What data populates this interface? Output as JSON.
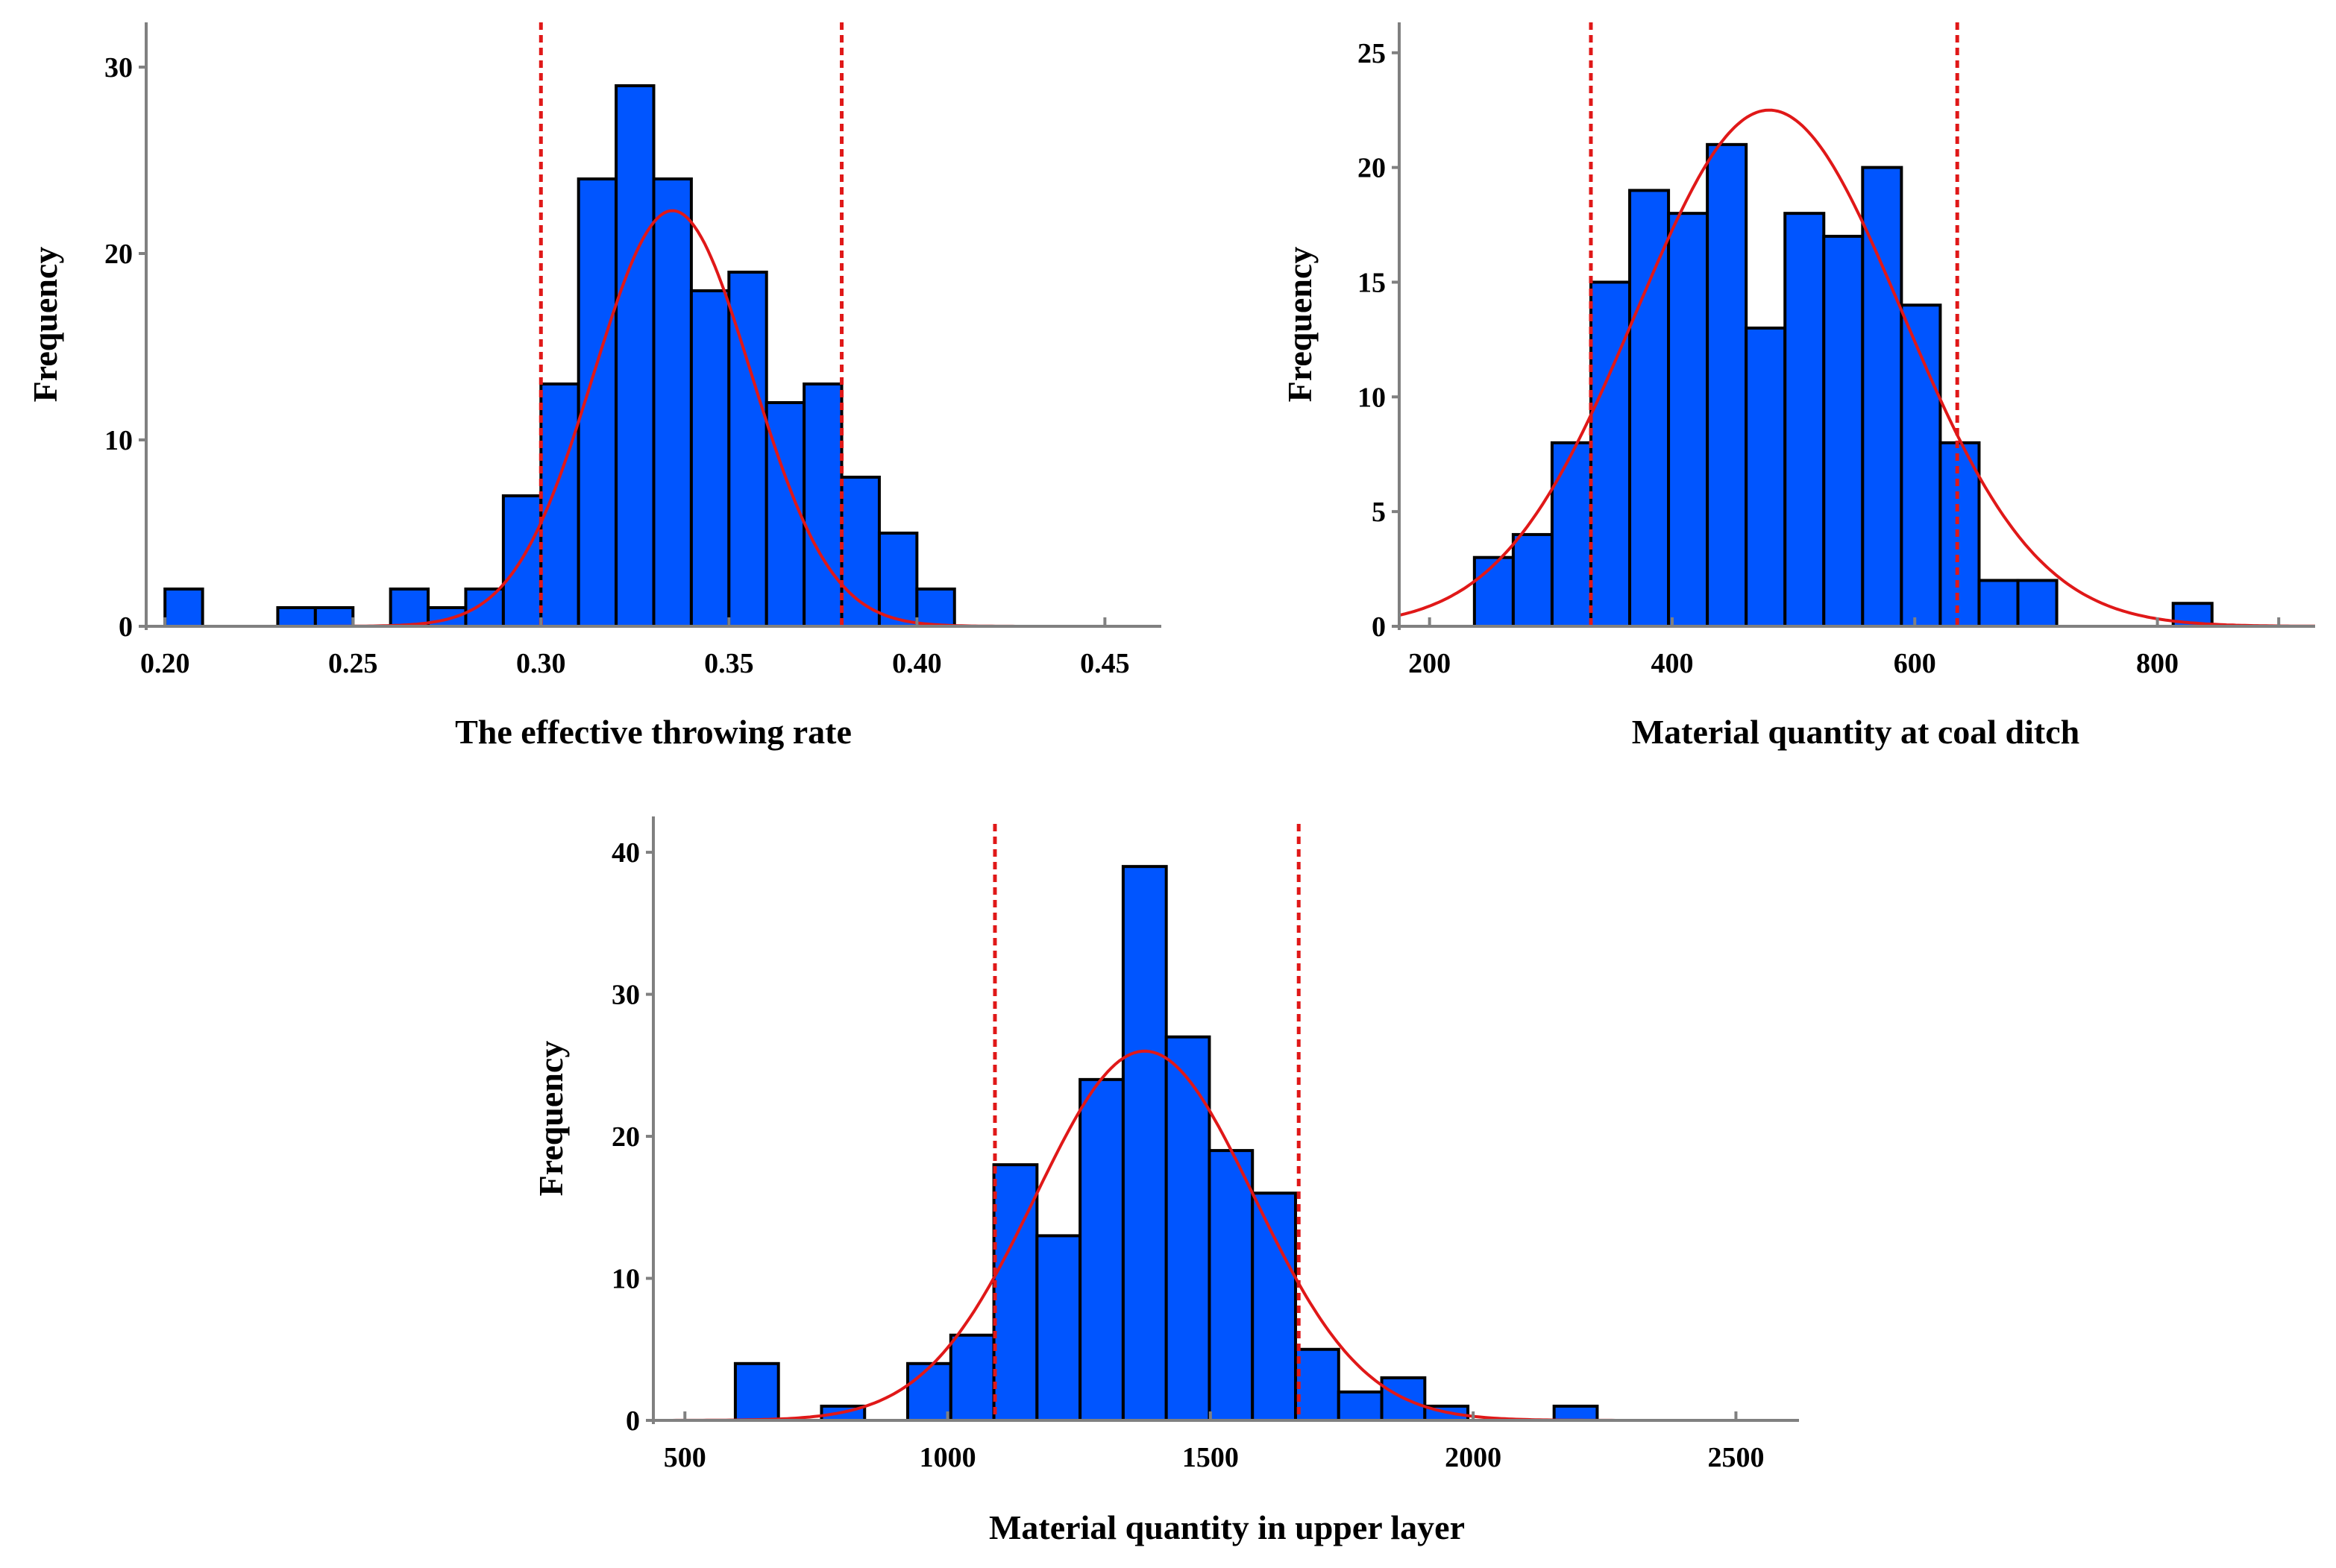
{
  "colors": {
    "bar": "#0055ff",
    "bar_edge": "#000000",
    "fit": "#e01818",
    "ref": "#e01818"
  },
  "chart_data": [
    {
      "type": "bar",
      "title": "",
      "xlabel": "The effective throwing rate",
      "ylabel": "Frequency",
      "xlim": [
        0.195,
        0.465
      ],
      "ylim": [
        0,
        32
      ],
      "xticks": [
        0.2,
        0.25,
        0.3,
        0.35,
        0.4,
        0.45
      ],
      "xtick_labels": [
        "0.20",
        "0.25",
        "0.30",
        "0.35",
        "0.40",
        "0.45"
      ],
      "yticks": [
        0,
        10,
        20,
        30
      ],
      "ytick_labels": [
        "0",
        "10",
        "20",
        "30"
      ],
      "bin_width": 0.01,
      "bin_starts": [
        0.2,
        0.23,
        0.24,
        0.26,
        0.27,
        0.28,
        0.29,
        0.3,
        0.31,
        0.32,
        0.33,
        0.34,
        0.35,
        0.36,
        0.37,
        0.38,
        0.39,
        0.4
      ],
      "values": [
        2,
        1,
        1,
        2,
        1,
        2,
        7,
        13,
        24,
        29,
        24,
        18,
        19,
        12,
        13,
        8,
        5,
        2
      ],
      "normal_fit": {
        "mean": 0.335,
        "sd": 0.021,
        "peak": 22.3
      },
      "reference_lines": [
        0.3,
        0.38
      ]
    },
    {
      "type": "bar",
      "title": "",
      "xlabel": "Material quantity at coal ditch",
      "ylabel": "Frequency",
      "xlim": [
        175,
        930
      ],
      "ylim": [
        0,
        26
      ],
      "xticks": [
        200,
        400,
        600,
        800
      ],
      "xtick_labels": [
        "200",
        "400",
        "600",
        "800"
      ],
      "extra_tick_values": [
        900
      ],
      "yticks": [
        0,
        5,
        10,
        15,
        20,
        25
      ],
      "ytick_labels": [
        "0",
        "5",
        "10",
        "15",
        "20",
        "25"
      ],
      "bin_width": 32,
      "bin_starts": [
        237,
        269,
        301,
        333,
        365,
        397,
        429,
        461,
        493,
        525,
        557,
        589,
        621,
        653,
        685,
        813
      ],
      "values": [
        3,
        4,
        8,
        15,
        19,
        18,
        21,
        13,
        18,
        17,
        20,
        14,
        8,
        2,
        2,
        1
      ],
      "normal_fit": {
        "mean": 480,
        "sd": 110,
        "peak": 22.5
      },
      "reference_lines": [
        333,
        635
      ]
    },
    {
      "type": "bar",
      "title": "",
      "xlabel": "Material quantity in upper layer",
      "ylabel": "Frequency",
      "xlim": [
        440,
        2620
      ],
      "ylim": [
        0,
        42
      ],
      "xticks": [
        500,
        1000,
        1500,
        2000,
        2500
      ],
      "xtick_labels": [
        "500",
        "1000",
        "1500",
        "2000",
        "2500"
      ],
      "yticks": [
        0,
        10,
        20,
        30,
        40
      ],
      "ytick_labels": [
        "0",
        "10",
        "20",
        "30",
        "40"
      ],
      "bin_width": 82,
      "bin_starts": [
        596,
        760,
        924,
        1006,
        1088,
        1170,
        1252,
        1334,
        1416,
        1498,
        1580,
        1662,
        1744,
        1826,
        1908,
        2154
      ],
      "values": [
        4,
        1,
        4,
        6,
        18,
        13,
        24,
        39,
        27,
        19,
        16,
        5,
        2,
        3,
        1,
        1
      ],
      "normal_fit": {
        "mean": 1375,
        "sd": 208,
        "peak": 26
      },
      "reference_lines": [
        1090,
        1668
      ]
    }
  ]
}
